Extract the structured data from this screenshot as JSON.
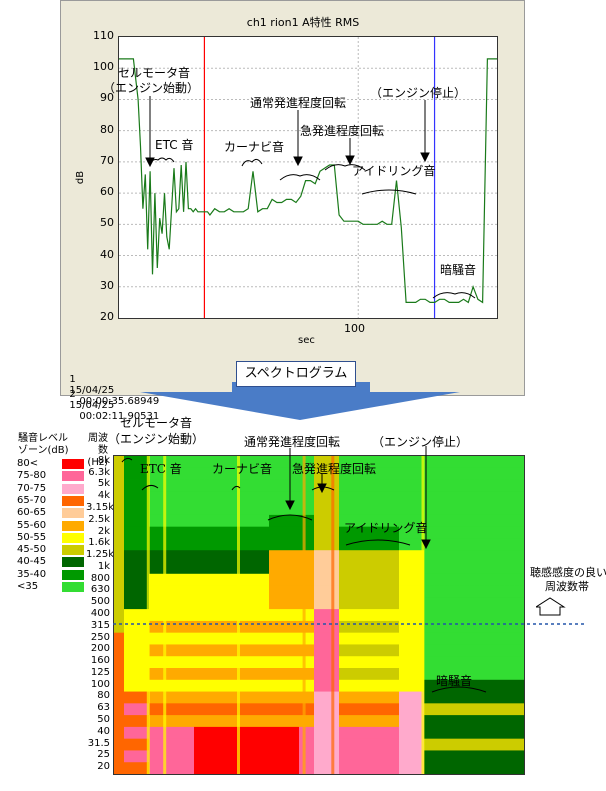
{
  "chart_data": [
    {
      "type": "line",
      "title": "ch1 rion1 A特性 RMS",
      "xlabel": "sec",
      "ylabel": "dB",
      "xlim": [
        0,
        158
      ],
      "ylim": [
        20,
        110
      ],
      "x_ticks": [
        "100"
      ],
      "y_ticks": [
        "20",
        "30",
        "40",
        "50",
        "60",
        "70",
        "80",
        "90",
        "100",
        "110"
      ],
      "grid": true,
      "line_color": "#1a7a1a",
      "cursors": [
        {
          "x": 35.7,
          "color": "#ff0000"
        },
        {
          "x": 131.9,
          "color": "#3333ff"
        }
      ],
      "series": [
        {
          "x": [
            0,
            4,
            6,
            8,
            9,
            10,
            11,
            12,
            13,
            14,
            15,
            16,
            17,
            18,
            19,
            20,
            21,
            22,
            23,
            24,
            25,
            26,
            27,
            28,
            29,
            30,
            31,
            32,
            33,
            34,
            35,
            36,
            37,
            38,
            40,
            42,
            44,
            46,
            48,
            50,
            52,
            54,
            56,
            58,
            60,
            62,
            64,
            66,
            68,
            70,
            72,
            74,
            76,
            78,
            80,
            82,
            84,
            86,
            88,
            90,
            92,
            94,
            96,
            98,
            100,
            102,
            104,
            106,
            108,
            110,
            112,
            114,
            116,
            118,
            120,
            122,
            124,
            126,
            128,
            130,
            132,
            134,
            136,
            138,
            140,
            142,
            144,
            146,
            148,
            150,
            152,
            154,
            156,
            158
          ],
          "y": [
            103,
            103,
            103,
            90,
            75,
            55,
            66,
            42,
            67,
            34,
            60,
            36,
            52,
            47,
            60,
            46,
            42,
            55,
            68,
            54,
            55,
            69,
            54,
            70,
            55,
            55,
            54,
            55,
            54,
            54,
            54,
            54,
            54,
            53,
            55,
            54,
            54,
            55,
            54,
            54,
            54,
            55,
            67,
            54,
            55,
            55,
            58,
            57,
            57,
            58,
            58,
            57,
            59,
            64,
            64,
            63,
            67,
            68,
            69,
            69,
            53,
            51,
            51,
            51,
            51,
            50,
            50,
            50,
            50,
            51,
            50,
            50,
            64,
            49,
            25,
            25,
            25,
            26,
            26,
            25,
            25,
            26,
            26,
            25,
            25,
            25,
            26,
            25,
            30,
            26,
            25,
            103,
            103,
            103
          ]
        }
      ],
      "annotations": [
        "セルモータ音",
        "（エンジン始動）",
        "ETC 音",
        "カーナビ音",
        "通常発進程度回転",
        "急発進程度回転",
        "（エンジン停止）",
        "アイドリング音",
        "暗騒音"
      ]
    },
    {
      "type": "heatmap",
      "title": "スペクトログラム",
      "y_axis_title": [
        "周波数",
        "(Hz)"
      ],
      "y_categories": [
        "8k",
        "6.3k",
        "5k",
        "4k",
        "3.15k",
        "2.5k",
        "2k",
        "1.6k",
        "1.25k",
        "1k",
        "800",
        "630",
        "500",
        "400",
        "315",
        "250",
        "200",
        "160",
        "125",
        "100",
        "80",
        "63",
        "50",
        "40",
        "31.5",
        "25",
        "20"
      ],
      "legend_title": [
        "騒音レベル",
        "ゾーン(dB)"
      ],
      "legend": [
        {
          "label": "80<",
          "color": "#ff0000"
        },
        {
          "label": "75-80",
          "color": "#ff6699"
        },
        {
          "label": "70-75",
          "color": "#ffaacc"
        },
        {
          "label": "65-70",
          "color": "#ff6600"
        },
        {
          "label": "60-65",
          "color": "#ffcc99"
        },
        {
          "label": "55-60",
          "color": "#ffaa00"
        },
        {
          "label": "50-55",
          "color": "#ffff00"
        },
        {
          "label": "45-50",
          "color": "#cccc00"
        },
        {
          "label": "40-45",
          "color": "#006600"
        },
        {
          "label": "35-40",
          "color": "#009900"
        },
        {
          "label": "<35",
          "color": "#33dd33"
        }
      ],
      "annotations": [
        "セルモータ音",
        "（エンジン始動）",
        "ETC 音",
        "カーナビ音",
        "通常発進程度回転",
        "急発進程度回転",
        "（エンジン停止）",
        "アイドリング音",
        "暗騒音"
      ],
      "side_note": [
        "聴感感度の良い",
        "周波数帯"
      ]
    }
  ],
  "cursor_readouts": [
    {
      "id": "1",
      "date": "15/04/25",
      "time": "00:00:35.68949"
    },
    {
      "id": "2",
      "date": "15/04/25",
      "time": "00:02:11.90531"
    }
  ]
}
